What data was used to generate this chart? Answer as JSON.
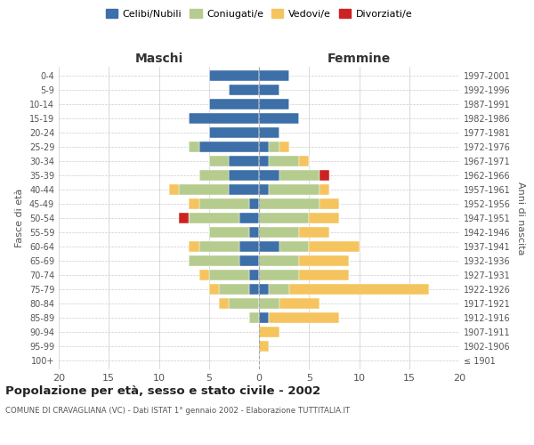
{
  "age_groups": [
    "100+",
    "95-99",
    "90-94",
    "85-89",
    "80-84",
    "75-79",
    "70-74",
    "65-69",
    "60-64",
    "55-59",
    "50-54",
    "45-49",
    "40-44",
    "35-39",
    "30-34",
    "25-29",
    "20-24",
    "15-19",
    "10-14",
    "5-9",
    "0-4"
  ],
  "birth_years": [
    "≤ 1901",
    "1902-1906",
    "1907-1911",
    "1912-1916",
    "1917-1921",
    "1922-1926",
    "1927-1931",
    "1932-1936",
    "1937-1941",
    "1942-1946",
    "1947-1951",
    "1952-1956",
    "1957-1961",
    "1962-1966",
    "1967-1971",
    "1972-1976",
    "1977-1981",
    "1982-1986",
    "1987-1991",
    "1992-1996",
    "1997-2001"
  ],
  "males": {
    "celibi": [
      0,
      0,
      0,
      0,
      0,
      1,
      1,
      2,
      2,
      1,
      2,
      1,
      3,
      3,
      3,
      6,
      5,
      7,
      5,
      3,
      5
    ],
    "coniugati": [
      0,
      0,
      0,
      1,
      3,
      3,
      4,
      5,
      4,
      4,
      5,
      5,
      5,
      3,
      2,
      1,
      0,
      0,
      0,
      0,
      0
    ],
    "vedovi": [
      0,
      0,
      0,
      0,
      1,
      1,
      1,
      0,
      1,
      0,
      0,
      1,
      1,
      0,
      0,
      0,
      0,
      0,
      0,
      0,
      0
    ],
    "divorziati": [
      0,
      0,
      0,
      0,
      0,
      0,
      0,
      0,
      0,
      0,
      1,
      0,
      0,
      0,
      0,
      0,
      0,
      0,
      0,
      0,
      0
    ]
  },
  "females": {
    "nubili": [
      0,
      0,
      0,
      1,
      0,
      1,
      0,
      0,
      2,
      0,
      0,
      0,
      1,
      2,
      1,
      1,
      2,
      4,
      3,
      2,
      3
    ],
    "coniugate": [
      0,
      0,
      0,
      0,
      2,
      2,
      4,
      4,
      3,
      4,
      5,
      6,
      5,
      4,
      3,
      1,
      0,
      0,
      0,
      0,
      0
    ],
    "vedove": [
      0,
      1,
      2,
      7,
      4,
      14,
      5,
      5,
      5,
      3,
      3,
      2,
      1,
      0,
      1,
      1,
      0,
      0,
      0,
      0,
      0
    ],
    "divorziate": [
      0,
      0,
      0,
      0,
      0,
      0,
      0,
      0,
      0,
      0,
      0,
      0,
      0,
      1,
      0,
      0,
      0,
      0,
      0,
      0,
      0
    ]
  },
  "colors": {
    "celibi": "#3d6fa8",
    "coniugati": "#b5cc8e",
    "vedovi": "#f5c45e",
    "divorziati": "#cc2222"
  },
  "title": "Popolazione per età, sesso e stato civile - 2002",
  "subtitle": "COMUNE DI CRAVAGLIANA (VC) - Dati ISTAT 1° gennaio 2002 - Elaborazione TUTTITALIA.IT",
  "xlabel_left": "Maschi",
  "xlabel_right": "Femmine",
  "ylabel_left": "Fasce di età",
  "ylabel_right": "Anni di nascita",
  "xlim": 20,
  "legend_labels": [
    "Celibi/Nubili",
    "Coniugati/e",
    "Vedovi/e",
    "Divorziati/e"
  ],
  "background_color": "#ffffff",
  "grid_color": "#cccccc"
}
